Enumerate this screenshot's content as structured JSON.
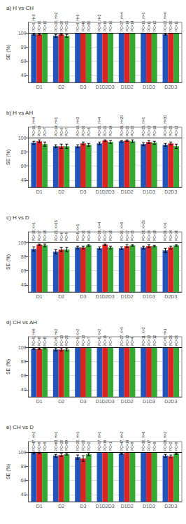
{
  "chart_data": [
    {
      "type": "bar",
      "title": "a) H vs CH",
      "ylabel": "SE (%)",
      "categories": [
        "D1",
        "D2",
        "D3",
        "D1D2D3",
        "D1D2",
        "D1D3",
        "D2D3"
      ],
      "series": [
        {
          "color": "#2255bb",
          "values": [
            98,
            96,
            100,
            100,
            100,
            100,
            98
          ],
          "errors": [
            1,
            2,
            0,
            0,
            0,
            0,
            1
          ],
          "labels": [
            "PC=5, H=3",
            "PC=20, H=2",
            "PC=9, H=0",
            "PC=9, H=2",
            "PC=27, H=4",
            "PC=15, H=1",
            "PC=22, H=4"
          ]
        },
        {
          "color": "#dd2222",
          "values": [
            98,
            98,
            100,
            100,
            100,
            100,
            100
          ],
          "errors": [
            1,
            1,
            0,
            0,
            0,
            0,
            0
          ],
          "labels": [
            "PC=10",
            "PC=20",
            "PC=40",
            "PC=10",
            "PC=14",
            "PC=11",
            "PC=30"
          ]
        },
        {
          "color": "#33aa33",
          "values": [
            100,
            96,
            100,
            100,
            100,
            100,
            100
          ],
          "errors": [
            0,
            2,
            0,
            0,
            0,
            0,
            0
          ],
          "labels": [
            "PC=10",
            "PC=21",
            "PC=80",
            "PC=10",
            "PC=14",
            "PC=12",
            "PC=11"
          ]
        }
      ],
      "ylim": [
        30,
        115
      ],
      "yticks": [
        40,
        60,
        80,
        100
      ],
      "grid": true,
      "reference_line": 100
    },
    {
      "type": "bar",
      "title": "b) H vs AH",
      "ylabel": "SE (%)",
      "categories": [
        "D1",
        "D2",
        "D3",
        "D1D2D3",
        "D1D2",
        "D1D3",
        "D2D3"
      ],
      "series": [
        {
          "color": "#2255bb",
          "values": [
            93,
            88,
            88,
            92,
            95,
            91,
            90
          ],
          "errors": [
            2,
            2,
            2,
            2,
            1,
            2,
            2
          ],
          "labels": [
            "PC=15, H=4",
            "PC=14, H=1",
            "PC=15, H=3",
            "PC=20, H=4",
            "PC=36, H=20",
            "PC=25, H=1",
            "PC=30, H=30"
          ]
        },
        {
          "color": "#dd2222",
          "values": [
            95,
            88,
            92,
            96,
            96,
            94,
            92
          ],
          "errors": [
            2,
            3,
            2,
            1,
            1,
            2,
            2
          ],
          "labels": [
            "PC=19",
            "PC=5",
            "PC=20",
            "PC=20",
            "PC=20",
            "PC=13",
            "PC=20"
          ]
        },
        {
          "color": "#33aa33",
          "values": [
            91,
            88,
            90,
            94,
            95,
            93,
            88
          ],
          "errors": [
            3,
            3,
            2,
            2,
            2,
            2,
            3
          ],
          "labels": [
            "PC=7",
            "PC=7",
            "PC=9",
            "PC=14",
            "PC=20",
            "PC=16",
            "PC=12"
          ]
        }
      ],
      "ylim": [
        30,
        115
      ],
      "yticks": [
        40,
        60,
        80,
        100
      ],
      "grid": true,
      "reference_line": 100
    },
    {
      "type": "bar",
      "title": "c) H vs D",
      "ylabel": "SE (%)",
      "categories": [
        "D1",
        "D2",
        "D3",
        "D1D2D3",
        "D1D2",
        "D1D3",
        "D2D3"
      ],
      "series": [
        {
          "color": "#2255bb",
          "values": [
            91,
            87,
            93,
            92,
            92,
            93,
            89
          ],
          "errors": [
            3,
            3,
            2,
            2,
            2,
            2,
            3
          ],
          "labels": [
            "PC=18, K=1",
            "PC=21, K=18",
            "PC=8, K=1",
            "PC=26, K=4",
            "PC=30, K=8",
            "PC=28, K=20",
            "PC=26, K=1"
          ]
        },
        {
          "color": "#dd2222",
          "values": [
            97,
            90,
            93,
            97,
            95,
            95,
            93
          ],
          "errors": [
            1,
            3,
            2,
            1,
            2,
            2,
            2
          ],
          "labels": [
            "PC=17",
            "PC=6",
            "PC=10",
            "PC=17",
            "PC=17",
            "PC=19",
            "PC=14"
          ]
        },
        {
          "color": "#33aa33",
          "values": [
            96,
            90,
            96,
            93,
            96,
            95,
            96
          ],
          "errors": [
            2,
            3,
            1,
            2,
            1,
            1,
            1
          ],
          "labels": [
            "PC=18",
            "PC=9",
            "PC=10",
            "PC=18",
            "PC=15",
            "PC=18",
            "PC=16"
          ]
        }
      ],
      "ylim": [
        30,
        115
      ],
      "yticks": [
        40,
        60,
        80,
        100
      ],
      "grid": true,
      "reference_line": 100
    },
    {
      "type": "bar",
      "title": "d) CH vs AH",
      "ylabel": "SE (%)",
      "categories": [
        "D1",
        "D2",
        "D3",
        "D1D2D3",
        "D1D2",
        "D1D3",
        "D2D3"
      ],
      "series": [
        {
          "color": "#2255bb",
          "values": [
            98,
            97,
            100,
            100,
            100,
            100,
            100
          ],
          "errors": [
            1,
            2,
            0,
            0,
            0,
            0,
            0
          ],
          "labels": [
            "PC=5, H=6",
            "PC=5, H=2",
            "PC=5, K=2",
            "PC=5, K=2",
            "PC=27, K=5",
            "PC=11, K=2",
            "PC=5, H=1"
          ]
        },
        {
          "color": "#dd2222",
          "values": [
            98,
            97,
            100,
            100,
            100,
            100,
            100
          ],
          "errors": [
            1,
            2,
            0,
            0,
            0,
            0,
            0
          ],
          "labels": [
            "PC=8",
            "PC=13",
            "PC=13",
            "PC=15",
            "PC=13",
            "PC=13",
            "PC=20"
          ]
        },
        {
          "color": "#33aa33",
          "values": [
            99,
            97,
            100,
            100,
            100,
            100,
            100
          ],
          "errors": [
            1,
            2,
            0,
            0,
            0,
            0,
            0
          ],
          "labels": [
            "PC=8",
            "PC=20",
            "PC=7",
            "PC=7",
            "PC=4",
            "PC=12",
            "PC=20"
          ]
        }
      ],
      "ylim": [
        30,
        115
      ],
      "yticks": [
        40,
        60,
        80,
        100
      ],
      "grid": true,
      "reference_line": 100
    },
    {
      "type": "bar",
      "title": "e) CH vs D",
      "ylabel": "SE (%)",
      "categories": [
        "D1",
        "D2",
        "D3",
        "D1D2D3",
        "D1D2",
        "D1D3",
        "D2D3"
      ],
      "series": [
        {
          "color": "#2255bb",
          "values": [
            99,
            95,
            93,
            99,
            98,
            99,
            95
          ],
          "errors": [
            1,
            2,
            3,
            0,
            1,
            0,
            2
          ],
          "labels": [
            "PC=47, H=2",
            "PC=63, H=1",
            "PC=20, H=1",
            "PC=57, H=1",
            "PC=47, H=2",
            "PC=30, H=6",
            "PC=26, H=2"
          ]
        },
        {
          "color": "#dd2222",
          "values": [
            99,
            96,
            91,
            99,
            99,
            99,
            94
          ],
          "errors": [
            1,
            2,
            4,
            0,
            0,
            0,
            2
          ],
          "labels": [
            "PC=9",
            "PC=20",
            "PC=20",
            "PC=19",
            "PC=14",
            "PC=17",
            "PC=2"
          ]
        },
        {
          "color": "#33aa33",
          "values": [
            99,
            97,
            97,
            99,
            99,
            99,
            98
          ],
          "errors": [
            0,
            1,
            2,
            0,
            0,
            0,
            1
          ],
          "labels": [
            "PC=9",
            "PC=89",
            "PC=2",
            "PC=1",
            "PC=9",
            "PC=9",
            "PC=9"
          ]
        }
      ],
      "ylim": [
        30,
        115
      ],
      "yticks": [
        40,
        60,
        80,
        100
      ],
      "grid": true,
      "reference_line": 100
    }
  ]
}
